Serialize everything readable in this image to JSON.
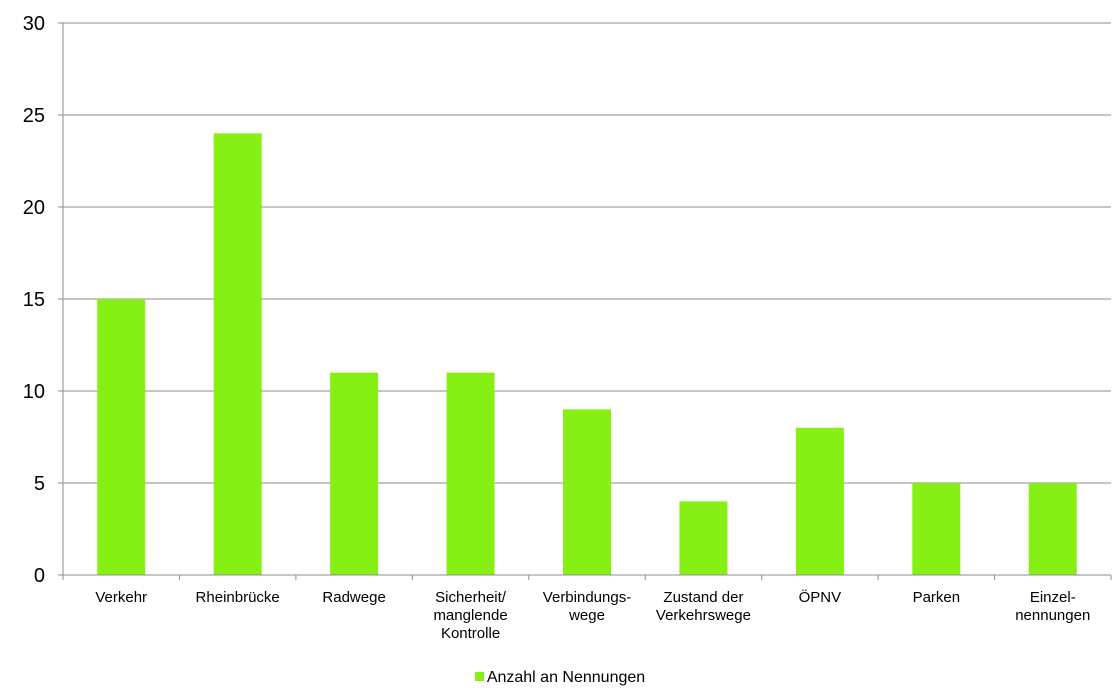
{
  "chart_data": {
    "type": "bar",
    "categories": [
      [
        "Verkehr"
      ],
      [
        "Rheinbrücke"
      ],
      [
        "Radwege"
      ],
      [
        "Sicherheit/",
        "manglende",
        "Kontrolle"
      ],
      [
        "Verbindungs-",
        "wege"
      ],
      [
        "Zustand der",
        "Verkehrswege"
      ],
      [
        "ÖPNV"
      ],
      [
        "Parken"
      ],
      [
        "Einzel-",
        "nennungen"
      ]
    ],
    "series": [
      {
        "name": "Anzahl an Nennungen",
        "values": [
          15,
          24,
          11,
          11,
          9,
          4,
          8,
          5,
          5
        ],
        "color": "#86f014"
      }
    ],
    "ylim": [
      0,
      30
    ],
    "yticks": [
      0,
      5,
      10,
      15,
      20,
      25,
      30
    ],
    "grid": true,
    "legend_position": "bottom"
  }
}
